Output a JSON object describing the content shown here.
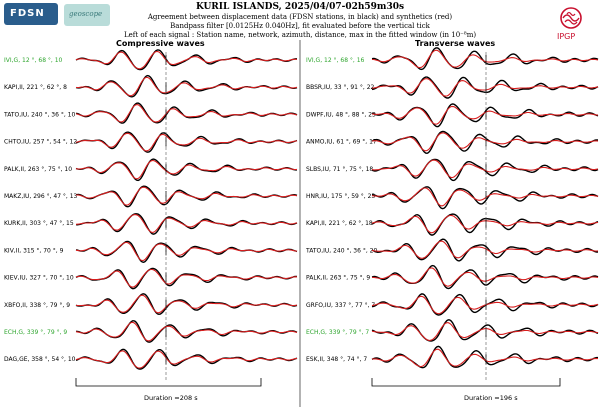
{
  "header": {
    "title": "KURIL ISLANDS, 2025/04/07-02h59m30s",
    "line1": "Agreement between displacement data (FDSN stations, in black) and synthetics (red)",
    "line2": "Bandpass filter [0.0125Hz 0.040Hz], fit evaluated before the vertical tick",
    "line3": "Left of each signal : Station name, network, azimuth, distance, max in the fitted window (in 10⁻⁸m)"
  },
  "logos": {
    "fdsn": "FDSN",
    "geoscope": "geoscope",
    "ipgp": "IPGP"
  },
  "colors": {
    "data": "#000000",
    "synthetic": "#d81e1e",
    "highlight": "#2ea52e"
  },
  "columns": [
    {
      "title": "Compressive waves",
      "duration": "Duration =208 s",
      "stations": [
        {
          "label": "IVI,G, 12 °, 68 °, 10",
          "green": true
        },
        {
          "label": "KAPI,II, 221 °, 62 °, 8",
          "green": false
        },
        {
          "label": "TATO,IU, 240 °, 36 °, 10",
          "green": false
        },
        {
          "label": "CHTO,IU, 257 °, 54 °, 12",
          "green": false
        },
        {
          "label": "PALK,II, 263 °, 75 °, 10",
          "green": false
        },
        {
          "label": "MAKZ,IU, 296 °, 47 °, 13",
          "green": false
        },
        {
          "label": "KURK,II, 303 °, 47 °, 15",
          "green": false
        },
        {
          "label": "KIV,II, 315 °, 70 °, 9",
          "green": false
        },
        {
          "label": "KIEV,IU, 327 °, 70 °, 10",
          "green": false
        },
        {
          "label": "XBFO,II, 338 °, 79 °, 9",
          "green": false
        },
        {
          "label": "ECH,G, 339 °, 79 °, 9",
          "green": true
        },
        {
          "label": "DAG,GE, 358 °, 54 °, 10",
          "green": false
        }
      ]
    },
    {
      "title": "Transverse waves",
      "duration": "Duration =196 s",
      "stations": [
        {
          "label": "IVI,G, 12 °, 68 °, 16",
          "green": true
        },
        {
          "label": "BBSR,IU, 33 °, 91 °, 22",
          "green": false
        },
        {
          "label": "DWPF,IU, 48 °, 88 °, 23",
          "green": false
        },
        {
          "label": "ANMO,IU, 61 °, 69 °, 17",
          "green": false
        },
        {
          "label": "SLBS,IU, 71 °, 75 °, 18",
          "green": false
        },
        {
          "label": "HNR,IU, 175 °, 59 °, 23",
          "green": false
        },
        {
          "label": "KAPI,II, 221 °, 62 °, 18",
          "green": false
        },
        {
          "label": "TATO,IU, 240 °, 36 °, 20",
          "green": false
        },
        {
          "label": "PALK,II, 263 °, 75 °, 9",
          "green": false
        },
        {
          "label": "GRFO,IU, 337 °, 77 °, 7",
          "green": false
        },
        {
          "label": "ECH,G, 339 °, 79 °, 7",
          "green": true
        },
        {
          "label": "ESK,II, 348 °, 74 °, 7",
          "green": false
        }
      ]
    }
  ]
}
